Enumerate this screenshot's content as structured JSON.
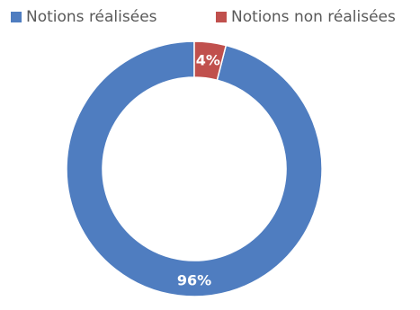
{
  "chart_data": {
    "type": "pie",
    "variant": "doughnut",
    "title": "",
    "categories": [
      "Notions réalisées",
      "Notions non réalisées"
    ],
    "values": [
      96,
      4
    ],
    "data_labels": [
      "96%",
      "4%"
    ],
    "colors": [
      "#4F7DC0",
      "#C0504D"
    ],
    "legend": "top",
    "legend_entries": [
      "Notions réalisées",
      "Notions non réalisées"
    ]
  }
}
